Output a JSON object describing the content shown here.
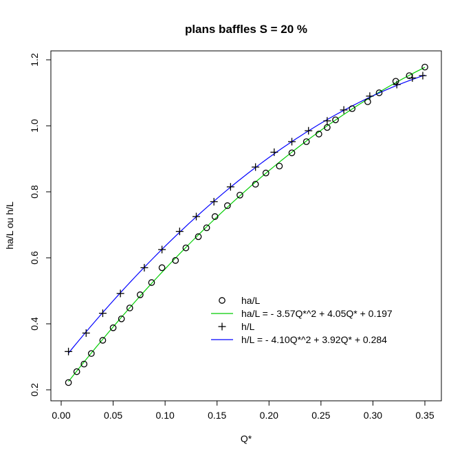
{
  "chart_data": {
    "type": "scatter",
    "title": "plans baffles S = 20 %",
    "xlabel": "Q*",
    "ylabel": "ha/L ou h/L",
    "xlim": [
      0.0,
      0.35
    ],
    "ylim": [
      0.2,
      1.2
    ],
    "x_ticks": [
      "0.00",
      "0.05",
      "0.10",
      "0.15",
      "0.20",
      "0.25",
      "0.30",
      "0.35"
    ],
    "y_ticks": [
      "0.2",
      "0.4",
      "0.6",
      "0.8",
      "1.0",
      "1.2"
    ],
    "grid": false,
    "legend_position": "bottom-right",
    "series": [
      {
        "name": "ha/L",
        "kind": "points",
        "marker": "circle",
        "color": "#000000",
        "x": [
          0.007,
          0.015,
          0.022,
          0.029,
          0.04,
          0.05,
          0.058,
          0.066,
          0.076,
          0.087,
          0.097,
          0.11,
          0.12,
          0.132,
          0.14,
          0.148,
          0.16,
          0.172,
          0.187,
          0.197,
          0.21,
          0.222,
          0.236,
          0.248,
          0.256,
          0.264,
          0.28,
          0.295,
          0.306,
          0.322,
          0.335,
          0.35
        ],
        "y": [
          0.222,
          0.255,
          0.278,
          0.31,
          0.35,
          0.388,
          0.415,
          0.448,
          0.488,
          0.525,
          0.57,
          0.592,
          0.63,
          0.664,
          0.691,
          0.725,
          0.758,
          0.79,
          0.823,
          0.857,
          0.878,
          0.918,
          0.952,
          0.975,
          0.995,
          1.018,
          1.052,
          1.073,
          1.1,
          1.135,
          1.152,
          1.178
        ]
      },
      {
        "name": "ha/L = - 3.57Q*^2 + 4.05Q* + 0.197",
        "kind": "fit",
        "color": "#00cc00",
        "coefficients": {
          "a": -3.57,
          "b": 4.05,
          "c": 0.197
        },
        "x_range": [
          0.007,
          0.35
        ]
      },
      {
        "name": "h/L",
        "kind": "points",
        "marker": "plus",
        "color": "#000000",
        "x": [
          0.007,
          0.024,
          0.04,
          0.057,
          0.08,
          0.097,
          0.114,
          0.13,
          0.147,
          0.163,
          0.187,
          0.205,
          0.222,
          0.238,
          0.256,
          0.272,
          0.297,
          0.323,
          0.338,
          0.348
        ],
        "y": [
          0.316,
          0.372,
          0.432,
          0.492,
          0.57,
          0.625,
          0.68,
          0.725,
          0.77,
          0.815,
          0.875,
          0.92,
          0.952,
          0.985,
          1.015,
          1.048,
          1.09,
          1.125,
          1.145,
          1.152
        ]
      },
      {
        "name": "h/L = - 4.10Q*^2 + 3.92Q* + 0.284",
        "kind": "fit",
        "color": "#0000ff",
        "coefficients": {
          "a": -4.1,
          "b": 3.92,
          "c": 0.284
        },
        "x_range": [
          0.007,
          0.35
        ]
      }
    ]
  }
}
